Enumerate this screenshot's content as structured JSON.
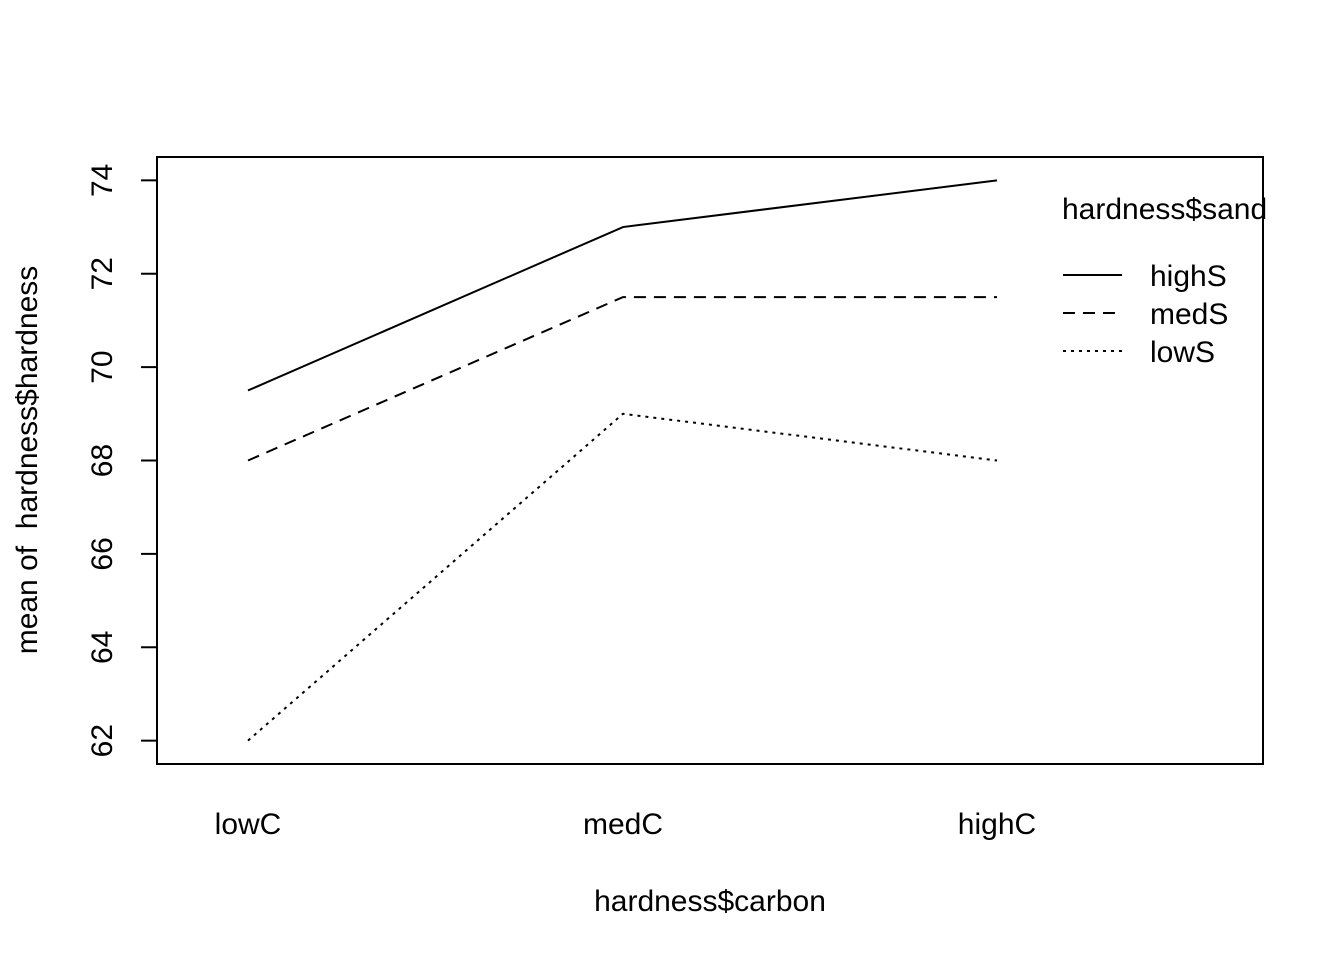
{
  "chart_data": {
    "type": "line",
    "categories": [
      "lowC",
      "medC",
      "highC"
    ],
    "xlabel": "hardness$carbon",
    "ylabel": "mean of  hardness$hardness",
    "ylim": [
      61.5,
      74.5
    ],
    "yticks": [
      62,
      64,
      66,
      68,
      70,
      72,
      74
    ],
    "legend": {
      "title": "hardness$sand",
      "position": "top-right",
      "frame": false
    },
    "series": [
      {
        "name": "highS",
        "values": [
          69.5,
          73.0,
          74.0
        ],
        "line_style": "solid"
      },
      {
        "name": "medS",
        "values": [
          68.0,
          71.5,
          71.5
        ],
        "line_style": "dashed"
      },
      {
        "name": "lowS",
        "values": [
          62.0,
          69.0,
          68.0
        ],
        "line_style": "dotted"
      }
    ],
    "grid": false,
    "colors": {
      "lines": "#000000",
      "background": "#ffffff"
    }
  }
}
